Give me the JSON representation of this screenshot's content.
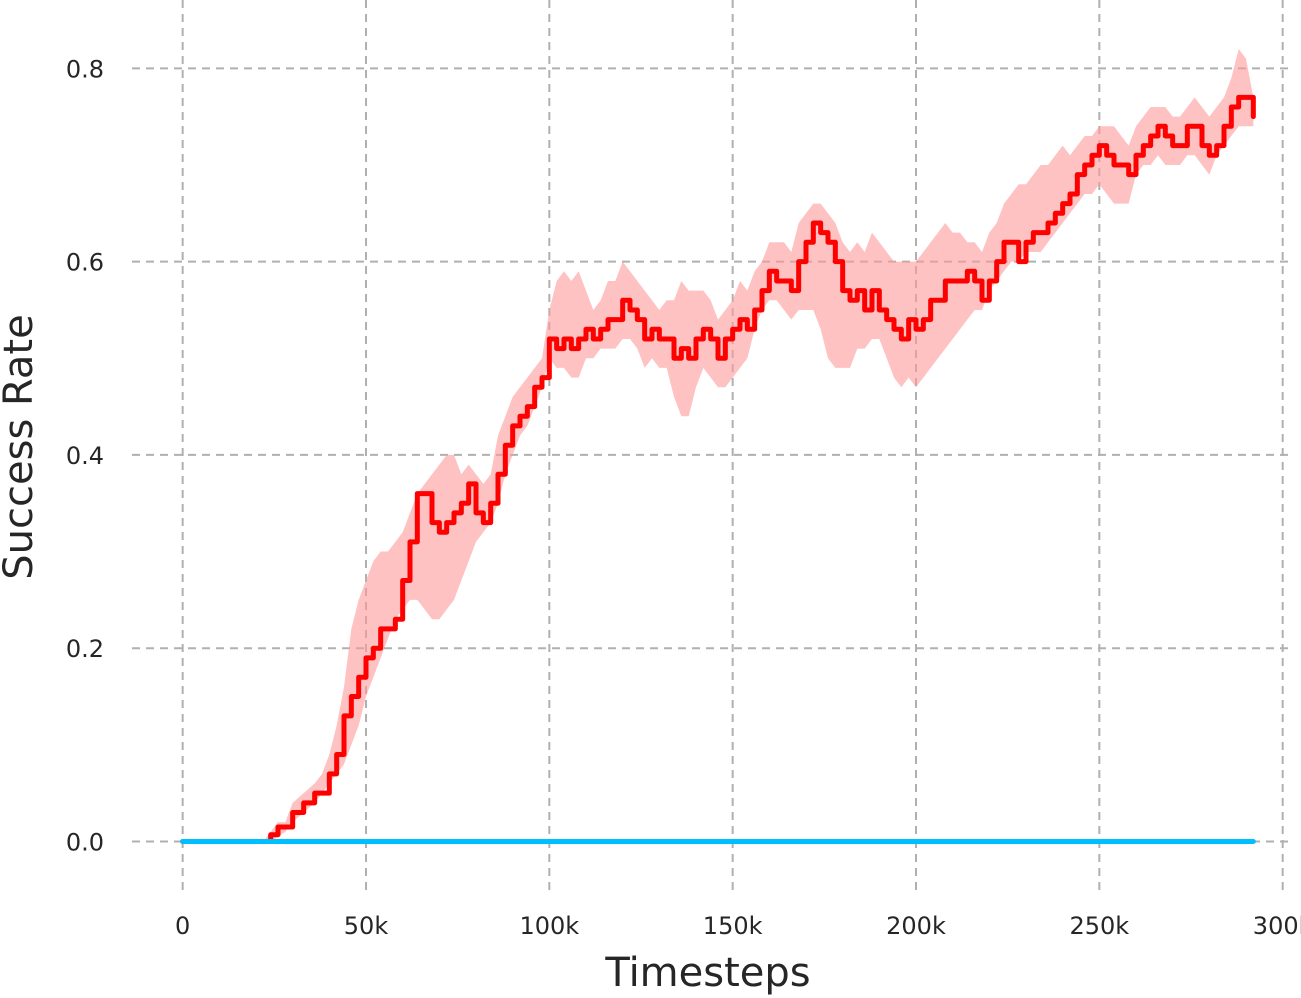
{
  "chart_data": {
    "type": "line",
    "title": "",
    "xlabel": "Timesteps",
    "ylabel": "Success Rate",
    "xlim": [
      -10000,
      302000
    ],
    "ylim": [
      -0.045,
      0.85
    ],
    "x_ticks": [
      0,
      50000,
      100000,
      150000,
      200000,
      250000,
      300000
    ],
    "x_tick_labels": [
      "0",
      "50k",
      "100k",
      "150k",
      "200k",
      "250k",
      "300k"
    ],
    "y_ticks": [
      0.0,
      0.2,
      0.4,
      0.6,
      0.8
    ],
    "y_tick_labels": [
      "0.0",
      "0.2",
      "0.4",
      "0.6",
      "0.8"
    ],
    "grid": true,
    "legend": "none",
    "series": [
      {
        "color": "#ff0000",
        "band_color": "#ff9999",
        "x": [
          0,
          5000,
          10000,
          15000,
          20000,
          22000,
          24000,
          26000,
          28000,
          30000,
          33000,
          36000,
          38000,
          40000,
          42000,
          44000,
          46000,
          48000,
          50000,
          52000,
          54000,
          56000,
          58000,
          60000,
          62000,
          64000,
          66000,
          68000,
          70000,
          72000,
          74000,
          76000,
          78000,
          80000,
          82000,
          84000,
          86000,
          88000,
          90000,
          92000,
          94000,
          96000,
          98000,
          100000,
          102000,
          104000,
          106000,
          108000,
          110000,
          112000,
          114000,
          116000,
          118000,
          120000,
          122000,
          124000,
          126000,
          128000,
          130000,
          132000,
          134000,
          136000,
          138000,
          140000,
          142000,
          144000,
          146000,
          148000,
          150000,
          152000,
          154000,
          156000,
          158000,
          160000,
          162000,
          164000,
          166000,
          168000,
          170000,
          172000,
          174000,
          176000,
          178000,
          180000,
          182000,
          184000,
          186000,
          188000,
          190000,
          192000,
          194000,
          196000,
          198000,
          200000,
          202000,
          204000,
          206000,
          208000,
          210000,
          212000,
          214000,
          216000,
          218000,
          220000,
          222000,
          224000,
          226000,
          228000,
          230000,
          232000,
          234000,
          236000,
          238000,
          240000,
          242000,
          244000,
          246000,
          248000,
          250000,
          252000,
          254000,
          256000,
          258000,
          260000,
          262000,
          264000,
          266000,
          268000,
          270000,
          272000,
          274000,
          276000,
          278000,
          280000,
          282000,
          284000,
          286000,
          288000,
          290000,
          292000
        ],
        "mean": [
          0.0,
          0.0,
          0.0,
          0.0,
          0.0,
          0.0,
          0.007,
          0.015,
          0.015,
          0.03,
          0.04,
          0.05,
          0.05,
          0.07,
          0.09,
          0.13,
          0.15,
          0.17,
          0.19,
          0.2,
          0.22,
          0.22,
          0.23,
          0.27,
          0.31,
          0.36,
          0.36,
          0.33,
          0.32,
          0.33,
          0.34,
          0.35,
          0.37,
          0.34,
          0.33,
          0.35,
          0.38,
          0.41,
          0.43,
          0.44,
          0.45,
          0.47,
          0.48,
          0.52,
          0.51,
          0.52,
          0.51,
          0.52,
          0.53,
          0.52,
          0.53,
          0.54,
          0.54,
          0.56,
          0.55,
          0.54,
          0.52,
          0.53,
          0.52,
          0.52,
          0.5,
          0.51,
          0.5,
          0.52,
          0.53,
          0.52,
          0.5,
          0.52,
          0.53,
          0.54,
          0.53,
          0.55,
          0.57,
          0.59,
          0.58,
          0.58,
          0.57,
          0.6,
          0.62,
          0.64,
          0.63,
          0.62,
          0.6,
          0.57,
          0.56,
          0.57,
          0.55,
          0.57,
          0.55,
          0.54,
          0.53,
          0.52,
          0.54,
          0.53,
          0.54,
          0.56,
          0.56,
          0.58,
          0.58,
          0.58,
          0.59,
          0.58,
          0.56,
          0.58,
          0.6,
          0.62,
          0.62,
          0.6,
          0.62,
          0.63,
          0.63,
          0.64,
          0.65,
          0.66,
          0.67,
          0.69,
          0.7,
          0.71,
          0.72,
          0.71,
          0.7,
          0.7,
          0.69,
          0.71,
          0.72,
          0.73,
          0.74,
          0.73,
          0.72,
          0.72,
          0.74,
          0.74,
          0.72,
          0.71,
          0.72,
          0.74,
          0.76,
          0.77,
          0.77,
          0.75
        ],
        "lower": [
          0.0,
          0.0,
          0.0,
          0.0,
          0.0,
          0.0,
          0.0,
          0.005,
          0.01,
          0.02,
          0.03,
          0.04,
          0.05,
          0.06,
          0.07,
          0.08,
          0.1,
          0.12,
          0.15,
          0.17,
          0.19,
          0.21,
          0.23,
          0.24,
          0.25,
          0.25,
          0.24,
          0.23,
          0.23,
          0.24,
          0.25,
          0.27,
          0.29,
          0.31,
          0.32,
          0.33,
          0.35,
          0.38,
          0.4,
          0.42,
          0.43,
          0.45,
          0.47,
          0.5,
          0.49,
          0.49,
          0.48,
          0.48,
          0.5,
          0.5,
          0.51,
          0.51,
          0.51,
          0.52,
          0.52,
          0.51,
          0.49,
          0.5,
          0.49,
          0.49,
          0.46,
          0.44,
          0.44,
          0.47,
          0.49,
          0.48,
          0.47,
          0.47,
          0.48,
          0.49,
          0.5,
          0.53,
          0.55,
          0.56,
          0.56,
          0.55,
          0.54,
          0.55,
          0.55,
          0.55,
          0.53,
          0.5,
          0.49,
          0.49,
          0.49,
          0.51,
          0.51,
          0.52,
          0.52,
          0.5,
          0.48,
          0.47,
          0.48,
          0.47,
          0.48,
          0.49,
          0.5,
          0.51,
          0.52,
          0.53,
          0.54,
          0.55,
          0.55,
          0.57,
          0.58,
          0.59,
          0.6,
          0.6,
          0.61,
          0.61,
          0.61,
          0.62,
          0.63,
          0.64,
          0.65,
          0.66,
          0.67,
          0.67,
          0.68,
          0.67,
          0.66,
          0.66,
          0.66,
          0.69,
          0.7,
          0.7,
          0.71,
          0.7,
          0.7,
          0.7,
          0.71,
          0.71,
          0.7,
          0.69,
          0.71,
          0.72,
          0.73,
          0.74,
          0.74,
          0.74
        ],
        "upper": [
          0.0,
          0.0,
          0.0,
          0.0,
          0.0,
          0.0,
          0.01,
          0.02,
          0.02,
          0.04,
          0.05,
          0.06,
          0.07,
          0.09,
          0.12,
          0.16,
          0.22,
          0.25,
          0.27,
          0.29,
          0.3,
          0.3,
          0.31,
          0.32,
          0.34,
          0.36,
          0.37,
          0.38,
          0.39,
          0.4,
          0.4,
          0.38,
          0.39,
          0.38,
          0.37,
          0.38,
          0.42,
          0.44,
          0.46,
          0.47,
          0.48,
          0.49,
          0.5,
          0.55,
          0.58,
          0.59,
          0.58,
          0.59,
          0.57,
          0.55,
          0.56,
          0.58,
          0.58,
          0.6,
          0.59,
          0.58,
          0.57,
          0.56,
          0.55,
          0.56,
          0.56,
          0.58,
          0.57,
          0.57,
          0.57,
          0.56,
          0.54,
          0.55,
          0.56,
          0.58,
          0.57,
          0.59,
          0.6,
          0.62,
          0.62,
          0.62,
          0.61,
          0.64,
          0.65,
          0.66,
          0.66,
          0.65,
          0.64,
          0.62,
          0.61,
          0.62,
          0.61,
          0.63,
          0.62,
          0.61,
          0.6,
          0.6,
          0.6,
          0.6,
          0.61,
          0.62,
          0.63,
          0.64,
          0.63,
          0.63,
          0.62,
          0.62,
          0.61,
          0.63,
          0.64,
          0.66,
          0.67,
          0.68,
          0.68,
          0.69,
          0.7,
          0.7,
          0.71,
          0.72,
          0.71,
          0.72,
          0.73,
          0.73,
          0.74,
          0.74,
          0.74,
          0.73,
          0.72,
          0.74,
          0.75,
          0.76,
          0.76,
          0.76,
          0.75,
          0.75,
          0.76,
          0.77,
          0.76,
          0.75,
          0.76,
          0.77,
          0.79,
          0.82,
          0.81,
          0.77
        ]
      },
      {
        "color": "#00bfff",
        "x": [
          0,
          50000,
          100000,
          150000,
          200000,
          250000,
          292000
        ],
        "mean": [
          0.0,
          0.0,
          0.0,
          0.0,
          0.0,
          0.0,
          0.0
        ]
      }
    ]
  }
}
